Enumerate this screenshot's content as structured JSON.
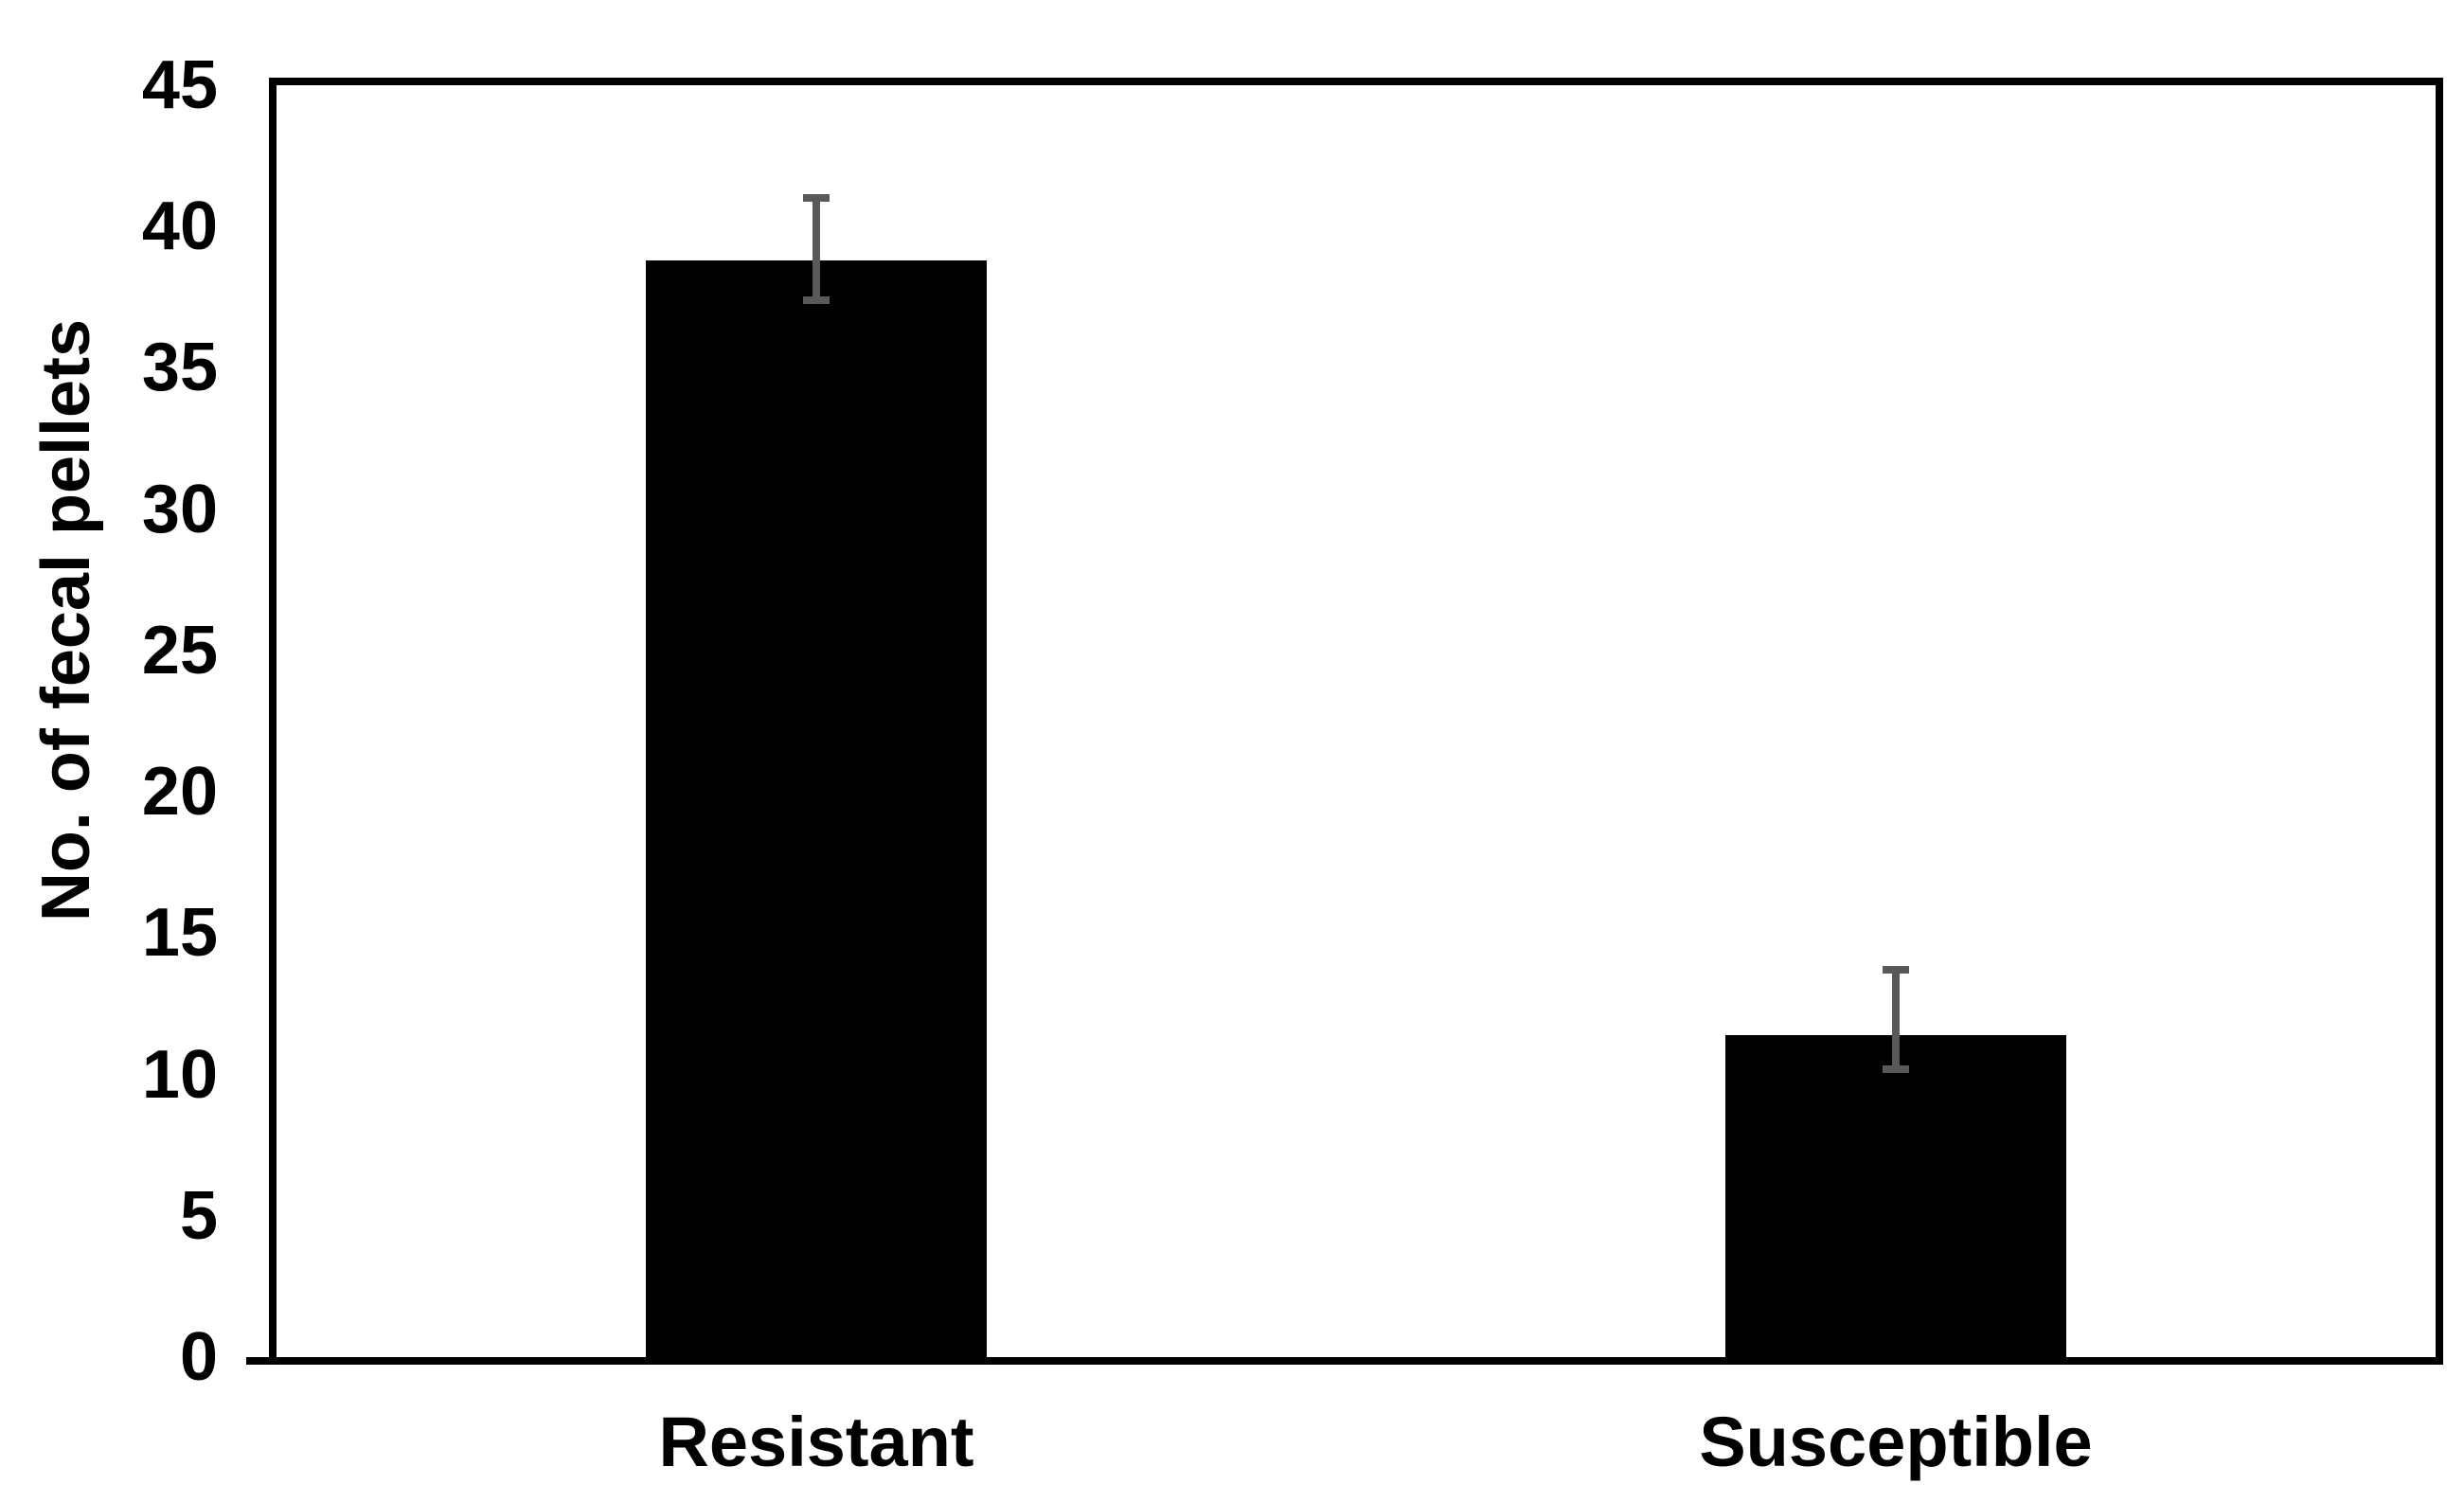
{
  "chart_data": {
    "type": "bar",
    "title": "",
    "categories": [
      "Resistant",
      "Susceptible"
    ],
    "values": [
      38.8,
      11.4
    ],
    "error_bars": {
      "upper": [
        2.2,
        2.3
      ],
      "lower": [
        1.4,
        1.2
      ]
    },
    "xlabel": "",
    "ylabel": "No. of fecal pellets",
    "ylim": [
      0,
      45
    ],
    "yticks": [
      0,
      5,
      10,
      15,
      20,
      25,
      30,
      35,
      40,
      45
    ],
    "grid": false,
    "legend": false,
    "bar_color": "#000000",
    "error_bar_color": "#595959",
    "axis_color": "#000000",
    "background_color": "#ffffff",
    "text_color": "#000000"
  }
}
